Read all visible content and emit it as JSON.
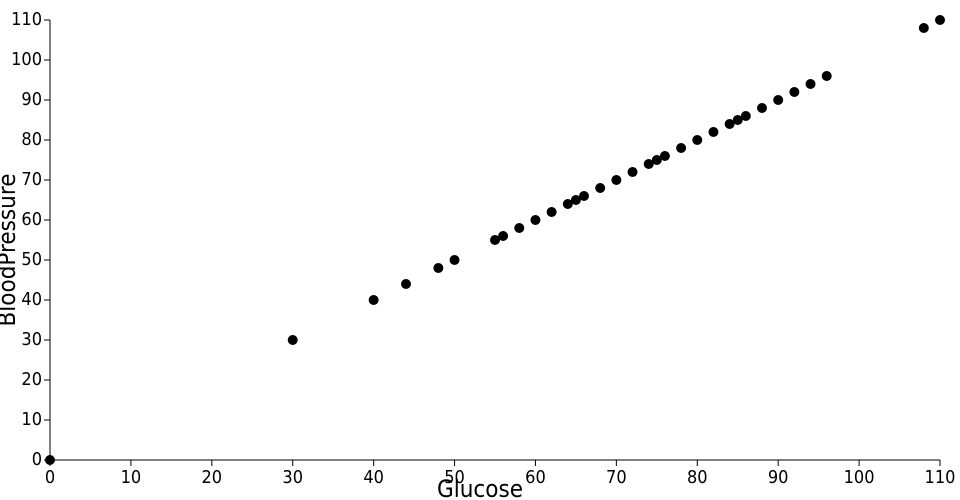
{
  "chart_data": {
    "type": "scatter",
    "x_label": "Glucose",
    "y_label": "BloodPressure",
    "color": "#000000",
    "x": [
      0,
      30,
      40,
      44,
      48,
      50,
      55,
      56,
      58,
      60,
      62,
      64,
      65,
      66,
      68,
      70,
      72,
      74,
      75,
      76,
      78,
      80,
      82,
      84,
      85,
      86,
      88,
      90,
      92,
      94,
      96,
      108,
      110
    ],
    "values": [
      0,
      30,
      40,
      44,
      48,
      50,
      55,
      56,
      58,
      60,
      62,
      64,
      65,
      66,
      68,
      70,
      72,
      74,
      75,
      76,
      78,
      80,
      82,
      84,
      85,
      86,
      88,
      90,
      92,
      94,
      96,
      108,
      110
    ],
    "xlim": [
      0,
      110
    ],
    "ylim": [
      0,
      110
    ],
    "xticks": [
      0,
      10,
      20,
      30,
      40,
      50,
      60,
      70,
      80,
      90,
      100,
      110
    ],
    "yticks": [
      0,
      10,
      20,
      30,
      40,
      50,
      60,
      70,
      80,
      90,
      100,
      110
    ],
    "grid": false
  }
}
